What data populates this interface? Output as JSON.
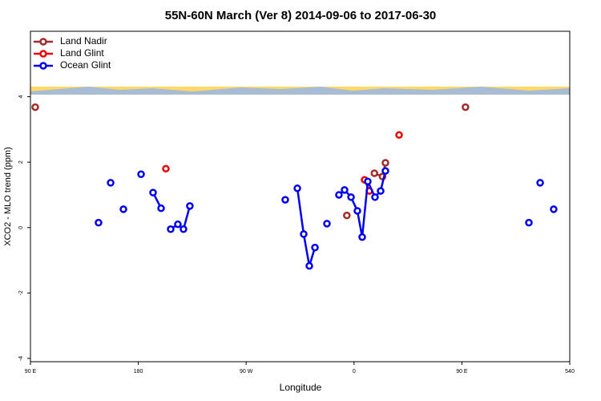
{
  "chart_data": {
    "type": "line",
    "title": "55N-60N March (Ver 8)   2014-09-06 to 2017-06-30",
    "x_label": "Longitude",
    "y_label": "XCO2 - MLO trend (ppm)",
    "xlim": [
      90,
      540
    ],
    "xticks": [
      {
        "value": 90,
        "label": "90 E"
      },
      180,
      {
        "value": 270,
        "label": "90 W"
      },
      {
        "value": 360,
        "label": "0"
      },
      {
        "value": 450,
        "label": "90 E"
      },
      540
    ],
    "ylim": [
      -4.1,
      6
    ],
    "yticks": [
      -4,
      -2,
      0,
      2,
      4
    ],
    "legend": "top-left",
    "series": [
      {
        "name": "Land Nadir",
        "color": "#a52a2a",
        "x": [
          94,
          null,
          354,
          null,
          377,
          383.8,
          386.2,
          null,
          453
        ],
        "values": [
          3.68,
          null,
          0.37,
          null,
          1.66,
          1.56,
          1.98,
          null,
          3.68
        ]
      },
      {
        "name": "Land Glint",
        "color": "#ee0000",
        "x": [
          203,
          null,
          368.8,
          372.8,
          null,
          397.6
        ],
        "values": [
          1.8,
          null,
          1.46,
          1.12,
          null,
          2.83
        ]
      },
      {
        "name": "Ocean Glint",
        "color": "#0000ee",
        "x": [
          146.8,
          null,
          156.9,
          null,
          167.6,
          null,
          182.3,
          null,
          192.3,
          199,
          null,
          207,
          213,
          217.7,
          223,
          null,
          302.6,
          null,
          312.7,
          318,
          322.7,
          327.4,
          null,
          337.4,
          null,
          347.4,
          352.1,
          357.5,
          362.8,
          366.8,
          371.5,
          377.5,
          382.2,
          386.2,
          null,
          505.9,
          null,
          515.3,
          null,
          526.6
        ],
        "values": [
          0.15,
          null,
          1.37,
          null,
          0.56,
          null,
          1.63,
          null,
          1.07,
          0.59,
          null,
          -0.05,
          0.1,
          -0.05,
          0.66,
          null,
          0.85,
          null,
          1.2,
          -0.2,
          -1.17,
          -0.61,
          null,
          0.12,
          null,
          1.0,
          1.15,
          0.93,
          0.51,
          -0.29,
          1.41,
          0.93,
          1.12,
          1.73,
          null,
          0.15,
          null,
          1.37,
          null,
          0.56
        ]
      }
    ]
  }
}
